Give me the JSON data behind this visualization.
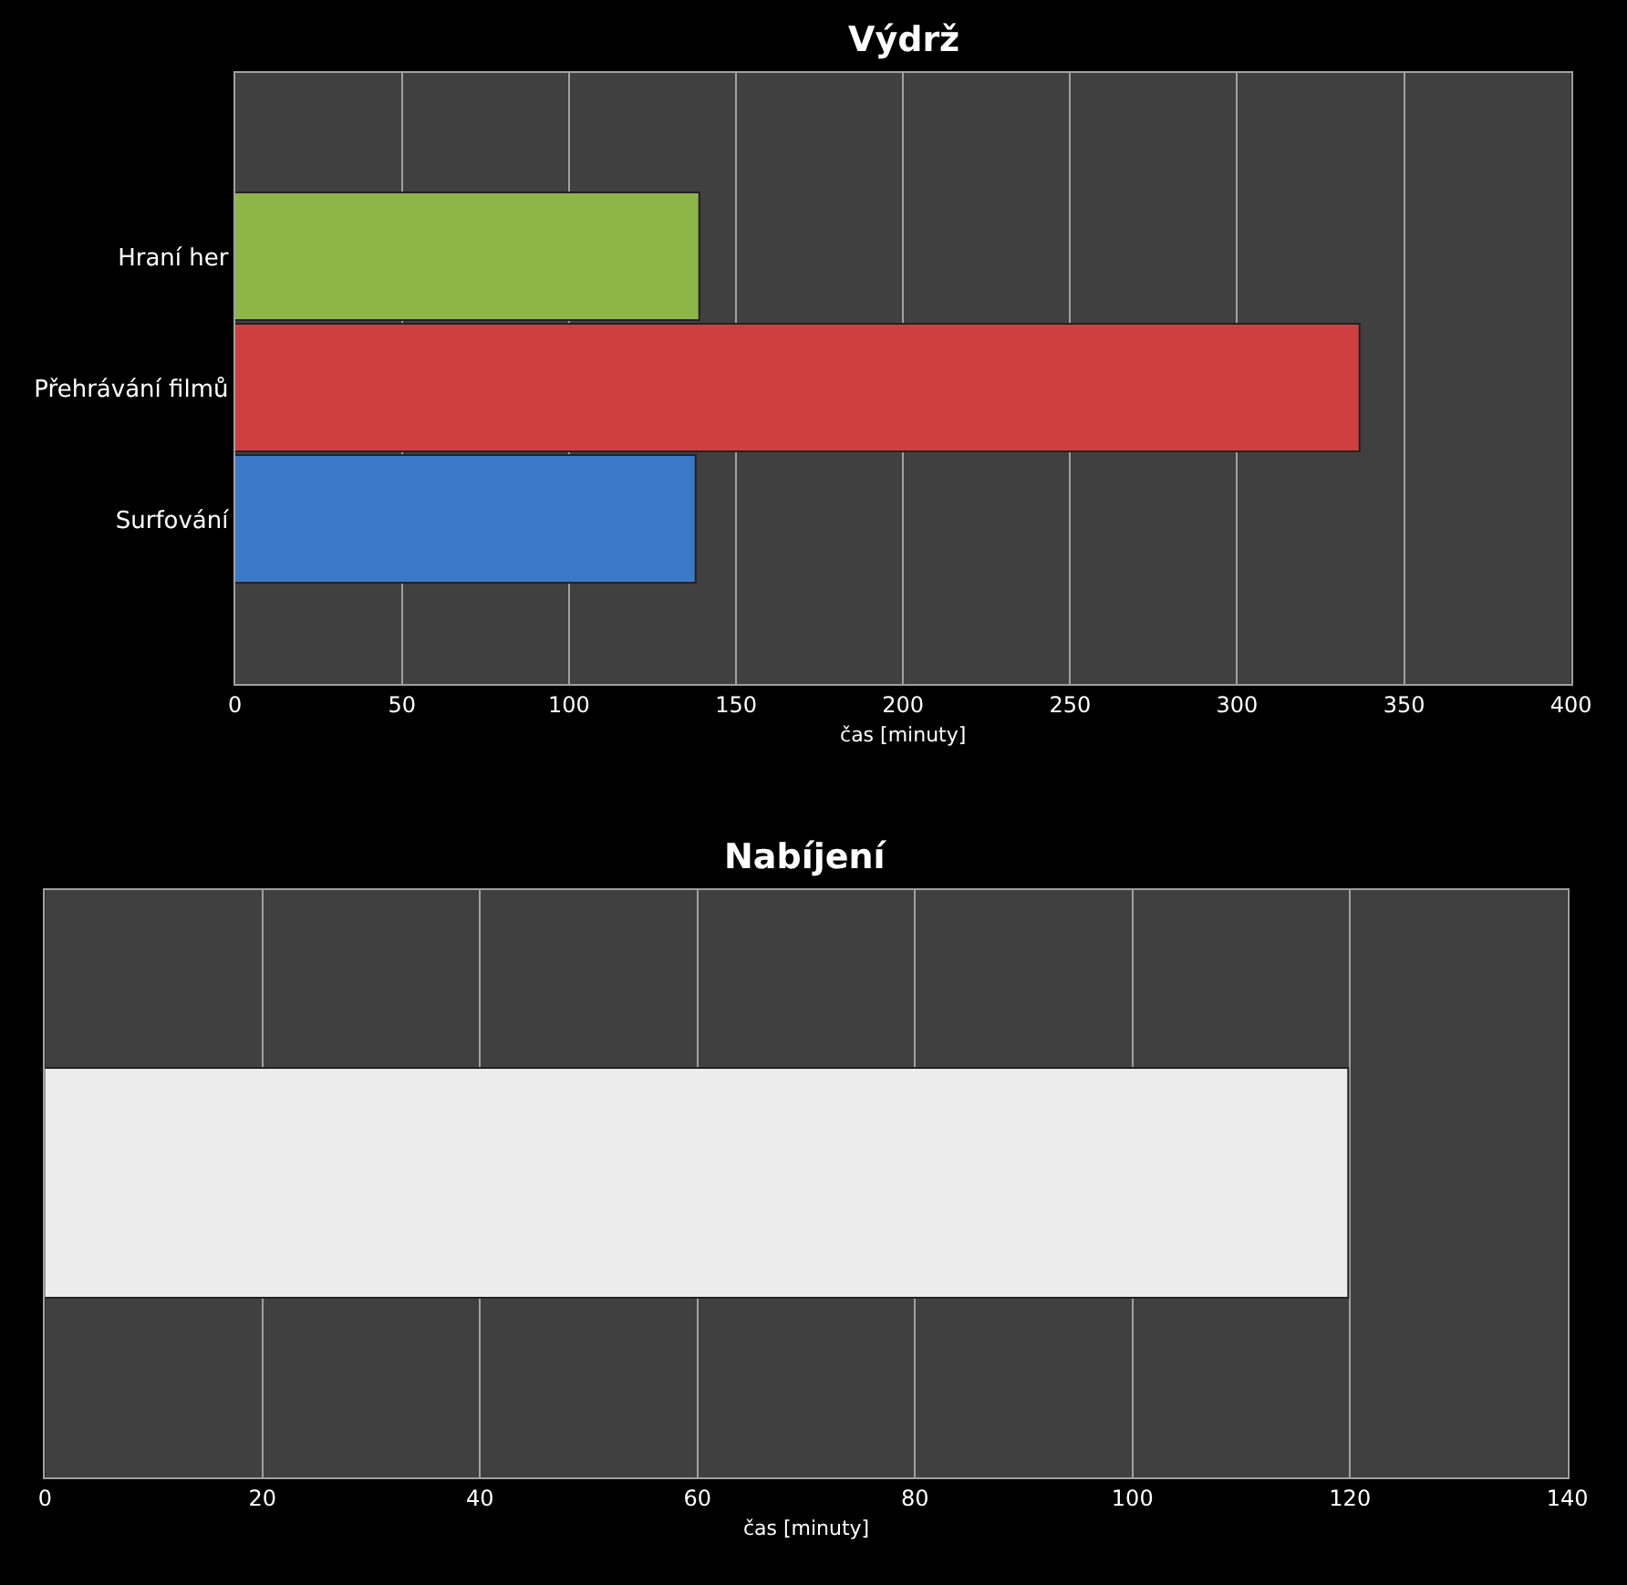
{
  "chart_data": [
    {
      "type": "bar",
      "orientation": "horizontal",
      "title": "Výdrž",
      "xlabel": "čas [minuty]",
      "categories": [
        "Hraní her",
        "Přehrávání filmů",
        "Surfování"
      ],
      "values": [
        139,
        337,
        138
      ],
      "colors": [
        "#8db548",
        "#cf3f3f",
        "#3c78c8"
      ],
      "xlim": [
        0,
        400
      ],
      "xticks": [
        0,
        50,
        100,
        150,
        200,
        250,
        300,
        350,
        400
      ],
      "grid": "x",
      "legend": false
    },
    {
      "type": "bar",
      "orientation": "horizontal",
      "title": "Nabíjení",
      "xlabel": "čas [minuty]",
      "categories": [
        null
      ],
      "values": [
        120
      ],
      "colors": [
        "#ececec"
      ],
      "xlim": [
        0,
        140
      ],
      "xticks": [
        0,
        20,
        40,
        60,
        80,
        100,
        120,
        140
      ],
      "grid": "x",
      "legend": false
    }
  ]
}
